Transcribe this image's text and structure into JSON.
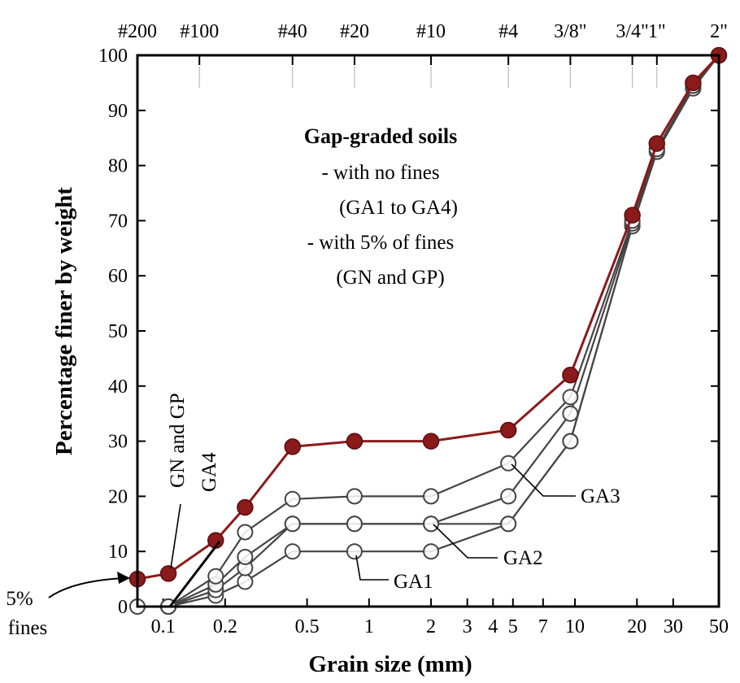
{
  "chart_data": {
    "type": "line",
    "title": "Gap-graded soils",
    "title_lines": [
      "- with no fines",
      "(GA1 to GA4)",
      "- with 5% of fines",
      "(GN and GP)"
    ],
    "xlabel": "Grain size (mm)",
    "ylabel": "Percentage finer by weight",
    "x_scale": "log",
    "xlim": [
      0.075,
      50
    ],
    "ylim": [
      0,
      100
    ],
    "x_ticks": [
      {
        "value": 0.1,
        "label": "0.1"
      },
      {
        "value": 0.2,
        "label": "0.2"
      },
      {
        "value": 0.5,
        "label": "0.5"
      },
      {
        "value": 1,
        "label": "1"
      },
      {
        "value": 2,
        "label": "2"
      },
      {
        "value": 3,
        "label": "3"
      },
      {
        "value": 4,
        "label": "4"
      },
      {
        "value": 5,
        "label": "5"
      },
      {
        "value": 7,
        "label": "7"
      },
      {
        "value": 10,
        "label": "10"
      },
      {
        "value": 20,
        "label": "20"
      },
      {
        "value": 30,
        "label": "30"
      },
      {
        "value": 50,
        "label": "50"
      }
    ],
    "y_ticks": [
      0,
      10,
      20,
      30,
      40,
      50,
      60,
      70,
      80,
      90,
      100
    ],
    "sieve_ticks": [
      {
        "value": 0.075,
        "label": "#200"
      },
      {
        "value": 0.15,
        "label": "#100"
      },
      {
        "value": 0.425,
        "label": "#40"
      },
      {
        "value": 0.85,
        "label": "#20"
      },
      {
        "value": 2.0,
        "label": "#10"
      },
      {
        "value": 4.75,
        "label": "#4"
      },
      {
        "value": 9.5,
        "label": "3/8\""
      },
      {
        "value": 19,
        "label": "3/4\""
      },
      {
        "value": 25,
        "label": "1\""
      },
      {
        "value": 50,
        "label": "2\""
      }
    ],
    "series": [
      {
        "name": "GN and GP",
        "marker": "filled",
        "color": "#8b1a1a",
        "x": [
          0.075,
          0.106,
          0.18,
          0.25,
          0.425,
          0.85,
          2.0,
          4.75,
          9.5,
          19,
          25,
          37.5,
          50
        ],
        "y": [
          5,
          6,
          12,
          18,
          29,
          30,
          30,
          32,
          42,
          71,
          84,
          95,
          100
        ]
      },
      {
        "name": "GA4",
        "marker": "open",
        "color": "#444444",
        "x": [
          0.106,
          0.18,
          0.25,
          0.425,
          0.85,
          2.0,
          4.75,
          9.5,
          19,
          25,
          37.5,
          50
        ],
        "y": [
          0,
          5.5,
          13.5,
          19.5,
          20,
          20,
          26,
          38,
          70,
          83,
          94.5,
          100
        ]
      },
      {
        "name": "GA3",
        "marker": "open",
        "color": "#444444",
        "x": [
          0.106,
          0.18,
          0.25,
          0.425,
          0.85,
          2.0,
          4.75,
          9.5,
          19,
          25,
          37.5,
          50
        ],
        "y": [
          0,
          4,
          9,
          15,
          15,
          15,
          20,
          35,
          69.5,
          83,
          94.5,
          100
        ]
      },
      {
        "name": "GA2",
        "marker": "open",
        "color": "#444444",
        "x": [
          0.106,
          0.18,
          0.25,
          0.425,
          0.85,
          2.0,
          4.75,
          9.5,
          19,
          25,
          37.5,
          50
        ],
        "y": [
          0,
          3,
          7,
          15,
          15,
          15,
          15,
          30,
          69,
          82.5,
          94,
          100
        ]
      },
      {
        "name": "GA1",
        "marker": "open",
        "color": "#444444",
        "x": [
          0.075,
          0.106,
          0.18,
          0.25,
          0.425,
          0.85,
          2.0,
          4.75,
          9.5,
          19,
          25,
          37.5,
          50
        ],
        "y": [
          0,
          0,
          2,
          4.5,
          10,
          10,
          10,
          15,
          30,
          69,
          82.5,
          94,
          100
        ]
      }
    ],
    "annotations": {
      "fines_line1": "5%",
      "fines_line2": "fines",
      "gn_gp": "GN and GP",
      "ga4": "GA4",
      "ga3": "GA3",
      "ga2": "GA2",
      "ga1": "GA1"
    },
    "grid": false
  }
}
